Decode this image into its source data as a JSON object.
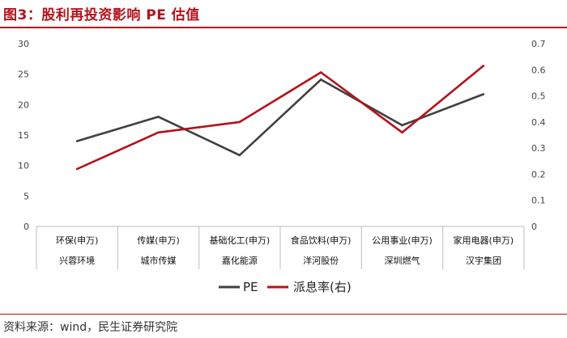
{
  "title": "图3：股利再投资影响 PE 估值",
  "source": "资料来源：wind，民生证券研究院",
  "chart_data": {
    "type": "line",
    "categories": [
      "环保(申万)",
      "传媒(申万)",
      "基础化工(申万)",
      "食品饮料(申万)",
      "公用事业(申万)",
      "家用电器(申万)"
    ],
    "subcategories": [
      "兴蓉环境",
      "城市传媒",
      "嘉化能源",
      "洋河股份",
      "深圳燃气",
      "汉宇集团"
    ],
    "left_axis": {
      "ylim": [
        0,
        30
      ],
      "ticks": [
        "0",
        "5",
        "10",
        "15",
        "20",
        "25",
        "30"
      ]
    },
    "right_axis": {
      "ylim": [
        0,
        0.7
      ],
      "ticks": [
        "0",
        "0.1",
        "0.2",
        "0.3",
        "0.4",
        "0.5",
        "0.6",
        "0.7"
      ]
    },
    "series": [
      {
        "name": "PE",
        "axis": "left",
        "color": "#404040",
        "values": [
          14.0,
          18.0,
          11.7,
          24.1,
          16.6,
          21.7
        ]
      },
      {
        "name": "派息率(右)",
        "axis": "right",
        "color": "#b5121b",
        "values": [
          0.22,
          0.36,
          0.4,
          0.59,
          0.36,
          0.615
        ]
      }
    ]
  }
}
